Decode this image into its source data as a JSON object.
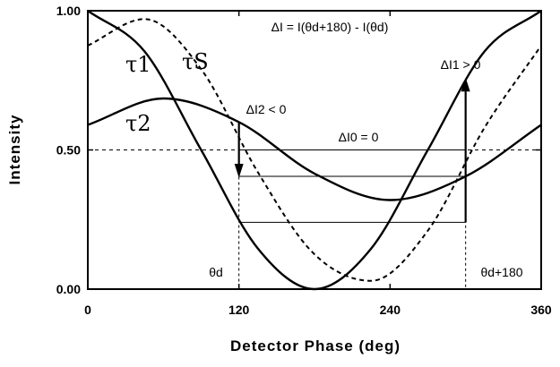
{
  "chart_data": {
    "type": "line",
    "xlabel": "Detector Phase (deg)",
    "ylabel": "Intensity",
    "xlim": [
      0,
      360
    ],
    "ylim": [
      0,
      1
    ],
    "x_ticks": [
      "0",
      "120",
      "240",
      "360"
    ],
    "y_ticks": [
      "0.00",
      "0.50",
      "1.00"
    ],
    "grid": false,
    "series": [
      {
        "name": "τ1",
        "style": "solid",
        "x": [
          0,
          45,
          90,
          135,
          180,
          225,
          270,
          315,
          360
        ],
        "y": [
          1.0,
          0.854,
          0.5,
          0.146,
          0.0,
          0.146,
          0.5,
          0.854,
          1.0
        ]
      },
      {
        "name": "τs",
        "style": "dashed",
        "x": [
          0,
          45,
          90,
          135,
          180,
          225,
          270,
          315,
          360
        ],
        "y": [
          0.875,
          0.97,
          0.79,
          0.42,
          0.125,
          0.03,
          0.21,
          0.58,
          0.875
        ]
      },
      {
        "name": "τ2",
        "style": "solid",
        "x": [
          0,
          60,
          120,
          180,
          240,
          300,
          360
        ],
        "y": [
          0.59,
          0.685,
          0.6,
          0.415,
          0.32,
          0.405,
          0.59
        ]
      }
    ],
    "reference_lines": [
      {
        "y": 0.5,
        "style": "dashed"
      },
      {
        "x": 120,
        "style": "dashed"
      },
      {
        "x": 300,
        "style": "dashed"
      }
    ],
    "annotations": {
      "formula": "ΔI = I(θd+180) - I(θd)",
      "delta_i2": "ΔI2 < 0",
      "delta_i1": "ΔI1 > 0",
      "delta_i0": "ΔI0 = 0",
      "theta_d": "θd",
      "theta_d_180": "θd+180",
      "label_tau1": "τ1",
      "label_taus": "τS",
      "label_tau2": "τ2"
    }
  }
}
